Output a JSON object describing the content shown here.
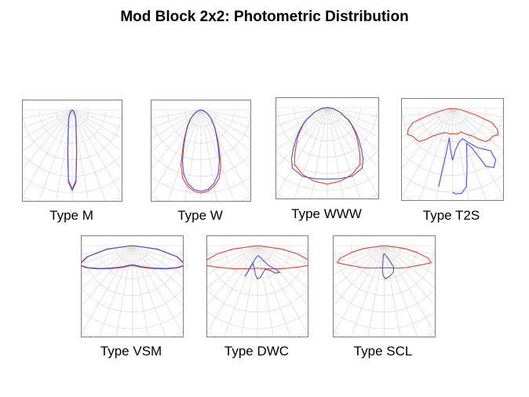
{
  "page": {
    "title": "Mod Block 2x2: Photometric Distribution"
  },
  "chart_data": [
    {
      "type": "polar",
      "caption": "Type M",
      "series": [
        {
          "name": "red",
          "color": "#e8413a",
          "points": [
            [
              0,
              0.95
            ],
            [
              3,
              0.85
            ],
            [
              6,
              0.5
            ],
            [
              9,
              0.3
            ],
            [
              12,
              0.22
            ],
            [
              15,
              0.17
            ],
            [
              20,
              0.12
            ],
            [
              25,
              0.09
            ],
            [
              30,
              0.06
            ],
            [
              40,
              0.03
            ],
            [
              55,
              0.01
            ],
            [
              80,
              0.0
            ]
          ]
        },
        {
          "name": "blue",
          "color": "#4a54d6",
          "points": [
            [
              0,
              0.97
            ],
            [
              3,
              0.87
            ],
            [
              6,
              0.52
            ],
            [
              9,
              0.31
            ],
            [
              12,
              0.23
            ],
            [
              15,
              0.175
            ],
            [
              20,
              0.125
            ],
            [
              25,
              0.09
            ],
            [
              30,
              0.065
            ],
            [
              40,
              0.03
            ],
            [
              55,
              0.01
            ],
            [
              80,
              0.0
            ]
          ]
        }
      ]
    },
    {
      "type": "polar",
      "caption": "Type W",
      "series": [
        {
          "name": "red",
          "color": "#e8413a",
          "points": [
            [
              0,
              1.0
            ],
            [
              5,
              0.98
            ],
            [
              10,
              0.93
            ],
            [
              15,
              0.85
            ],
            [
              20,
              0.7
            ],
            [
              25,
              0.52
            ],
            [
              30,
              0.4
            ],
            [
              35,
              0.31
            ],
            [
              40,
              0.25
            ],
            [
              50,
              0.16
            ],
            [
              60,
              0.09
            ],
            [
              75,
              0.03
            ],
            [
              88,
              0.0
            ]
          ]
        },
        {
          "name": "blue",
          "color": "#4a54d6",
          "points": [
            [
              0,
              0.98
            ],
            [
              5,
              0.96
            ],
            [
              10,
              0.9
            ],
            [
              15,
              0.8
            ],
            [
              20,
              0.65
            ],
            [
              25,
              0.49
            ],
            [
              30,
              0.38
            ],
            [
              35,
              0.3
            ],
            [
              40,
              0.24
            ],
            [
              50,
              0.155
            ],
            [
              60,
              0.09
            ],
            [
              75,
              0.03
            ],
            [
              88,
              0.0
            ]
          ]
        }
      ]
    },
    {
      "type": "polar",
      "caption": "Type WWW",
      "series": [
        {
          "name": "red",
          "color": "#e8413a",
          "points": [
            [
              0,
              0.92
            ],
            [
              10,
              0.9
            ],
            [
              20,
              0.86
            ],
            [
              30,
              0.79
            ],
            [
              35,
              0.68
            ],
            [
              40,
              0.58
            ],
            [
              45,
              0.5
            ],
            [
              50,
              0.42
            ],
            [
              55,
              0.35
            ],
            [
              60,
              0.28
            ],
            [
              70,
              0.16
            ],
            [
              80,
              0.07
            ],
            [
              88,
              0.0
            ]
          ]
        },
        {
          "name": "blue",
          "color": "#4a54d6",
          "points": [
            [
              0,
              0.86
            ],
            [
              10,
              0.87
            ],
            [
              20,
              0.88
            ],
            [
              30,
              0.84
            ],
            [
              35,
              0.75
            ],
            [
              40,
              0.63
            ],
            [
              45,
              0.53
            ],
            [
              50,
              0.44
            ],
            [
              55,
              0.36
            ],
            [
              60,
              0.29
            ],
            [
              70,
              0.16
            ],
            [
              80,
              0.07
            ],
            [
              88,
              0.0
            ]
          ]
        }
      ]
    },
    {
      "type": "polar",
      "caption": "Type T2S",
      "series": [
        {
          "name": "red",
          "color": "#e8413a",
          "points": [
            [
              -88,
              0.0
            ],
            [
              -80,
              0.1
            ],
            [
              -74,
              0.3
            ],
            [
              -70,
              0.5
            ],
            [
              -65,
              0.58
            ],
            [
              -60,
              0.62
            ],
            [
              -55,
              0.58
            ],
            [
              -50,
              0.57
            ],
            [
              -45,
              0.56
            ],
            [
              -40,
              0.48
            ],
            [
              -35,
              0.4
            ],
            [
              -28,
              0.35
            ],
            [
              -20,
              0.31
            ],
            [
              -12,
              0.3
            ],
            [
              -5,
              0.31
            ],
            [
              0,
              0.3
            ],
            [
              5,
              0.31
            ],
            [
              12,
              0.31
            ],
            [
              20,
              0.3
            ],
            [
              28,
              0.35
            ],
            [
              35,
              0.4
            ],
            [
              40,
              0.48
            ],
            [
              45,
              0.56
            ],
            [
              50,
              0.58
            ],
            [
              55,
              0.58
            ],
            [
              60,
              0.63
            ],
            [
              65,
              0.59
            ],
            [
              70,
              0.5
            ],
            [
              74,
              0.3
            ],
            [
              80,
              0.1
            ],
            [
              88,
              0.0
            ]
          ]
        },
        {
          "name": "blue",
          "color": "#4a54d6",
          "points": [
            [
              -10,
              0.95
            ],
            [
              -8,
              0.55
            ],
            [
              -6,
              0.35
            ],
            [
              -3,
              0.48
            ],
            [
              0,
              0.62
            ],
            [
              4,
              0.5
            ],
            [
              10,
              0.42
            ],
            [
              18,
              0.38
            ],
            [
              25,
              0.45
            ],
            [
              32,
              0.55
            ],
            [
              38,
              0.62
            ],
            [
              42,
              0.68
            ],
            [
              40,
              0.8
            ],
            [
              35,
              0.86
            ],
            [
              30,
              0.8
            ],
            [
              26,
              0.52
            ],
            [
              22,
              0.45
            ],
            [
              18,
              0.55
            ],
            [
              14,
              0.72
            ],
            [
              10,
              0.95
            ],
            [
              6,
              1.02
            ],
            [
              2,
              1.02
            ],
            [
              0,
              1.0
            ]
          ]
        }
      ]
    },
    {
      "type": "polar",
      "caption": "Type VSM",
      "series": [
        {
          "name": "red",
          "color": "#e8413a",
          "points": [
            [
              -88,
              0.0
            ],
            [
              -82,
              0.3
            ],
            [
              -76,
              0.55
            ],
            [
              -70,
              0.68
            ],
            [
              -64,
              0.6
            ],
            [
              -56,
              0.49
            ],
            [
              -46,
              0.39
            ],
            [
              -35,
              0.32
            ],
            [
              -22,
              0.27
            ],
            [
              -10,
              0.24
            ],
            [
              0,
              0.23
            ],
            [
              10,
              0.24
            ],
            [
              22,
              0.27
            ],
            [
              35,
              0.32
            ],
            [
              46,
              0.39
            ],
            [
              56,
              0.49
            ],
            [
              64,
              0.6
            ],
            [
              70,
              0.68
            ],
            [
              76,
              0.55
            ],
            [
              82,
              0.3
            ],
            [
              88,
              0.0
            ]
          ]
        },
        {
          "name": "blue",
          "color": "#4a54d6",
          "points": [
            [
              -88,
              0.0
            ],
            [
              -82,
              0.31
            ],
            [
              -76,
              0.56
            ],
            [
              -70,
              0.69
            ],
            [
              -64,
              0.61
            ],
            [
              -56,
              0.5
            ],
            [
              -46,
              0.4
            ],
            [
              -35,
              0.33
            ],
            [
              -22,
              0.28
            ],
            [
              -10,
              0.25
            ],
            [
              0,
              0.24
            ],
            [
              10,
              0.25
            ],
            [
              22,
              0.28
            ],
            [
              35,
              0.33
            ],
            [
              46,
              0.4
            ],
            [
              56,
              0.5
            ],
            [
              64,
              0.61
            ],
            [
              70,
              0.69
            ],
            [
              76,
              0.56
            ],
            [
              82,
              0.31
            ],
            [
              88,
              0.0
            ]
          ]
        }
      ]
    },
    {
      "type": "polar",
      "caption": "Type DWC",
      "series": [
        {
          "name": "red",
          "color": "#e8413a",
          "points": [
            [
              -88,
              0.0
            ],
            [
              -82,
              0.3
            ],
            [
              -78,
              0.5
            ],
            [
              -74,
              0.64
            ],
            [
              -70,
              0.68
            ],
            [
              -64,
              0.58
            ],
            [
              -56,
              0.48
            ],
            [
              -46,
              0.4
            ],
            [
              -35,
              0.34
            ],
            [
              -22,
              0.3
            ],
            [
              -10,
              0.28
            ],
            [
              0,
              0.27
            ],
            [
              10,
              0.28
            ],
            [
              22,
              0.3
            ],
            [
              35,
              0.34
            ],
            [
              46,
              0.4
            ],
            [
              56,
              0.48
            ],
            [
              64,
              0.58
            ],
            [
              70,
              0.68
            ],
            [
              74,
              0.64
            ],
            [
              78,
              0.5
            ],
            [
              82,
              0.3
            ],
            [
              88,
              0.0
            ]
          ]
        },
        {
          "name": "blue",
          "color": "#4a54d6",
          "points": [
            [
              -22,
              0.4
            ],
            [
              -14,
              0.22
            ],
            [
              -8,
              0.27
            ],
            [
              -4,
              0.35
            ],
            [
              0,
              0.4
            ],
            [
              6,
              0.38
            ],
            [
              12,
              0.33
            ],
            [
              18,
              0.3
            ],
            [
              26,
              0.33
            ],
            [
              34,
              0.4
            ],
            [
              40,
              0.42
            ],
            [
              36,
              0.34
            ],
            [
              28,
              0.26
            ],
            [
              20,
              0.18
            ],
            [
              12,
              0.14
            ],
            [
              4,
              0.12
            ],
            [
              -4,
              0.14
            ],
            [
              -12,
              0.18
            ],
            [
              -22,
              0.4
            ]
          ]
        }
      ]
    },
    {
      "type": "polar",
      "caption": "Type SCL",
      "series": [
        {
          "name": "red",
          "color": "#e8413a",
          "points": [
            [
              -88,
              0.0
            ],
            [
              -82,
              0.25
            ],
            [
              -78,
              0.4
            ],
            [
              -74,
              0.55
            ],
            [
              -70,
              0.6
            ],
            [
              -64,
              0.52
            ],
            [
              -56,
              0.44
            ],
            [
              -46,
              0.38
            ],
            [
              -35,
              0.33
            ],
            [
              -22,
              0.29
            ],
            [
              -10,
              0.27
            ],
            [
              0,
              0.27
            ],
            [
              10,
              0.27
            ],
            [
              22,
              0.29
            ],
            [
              35,
              0.33
            ],
            [
              46,
              0.38
            ],
            [
              56,
              0.44
            ],
            [
              64,
              0.52
            ],
            [
              70,
              0.6
            ],
            [
              74,
              0.55
            ],
            [
              78,
              0.4
            ],
            [
              82,
              0.25
            ],
            [
              88,
              0.0
            ]
          ]
        },
        {
          "name": "blue",
          "color": "#4a54d6",
          "points": [
            [
              -6,
              0.1
            ],
            [
              -4,
              0.3
            ],
            [
              -2,
              0.36
            ],
            [
              2,
              0.4
            ],
            [
              8,
              0.38
            ],
            [
              14,
              0.36
            ],
            [
              20,
              0.33
            ],
            [
              24,
              0.28
            ],
            [
              20,
              0.2
            ],
            [
              14,
              0.14
            ],
            [
              8,
              0.12
            ],
            [
              2,
              0.1
            ],
            [
              -3,
              0.1
            ]
          ]
        }
      ]
    }
  ]
}
